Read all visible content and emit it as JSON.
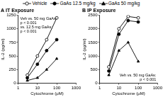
{
  "chart_data": [
    {
      "type": "line",
      "title": "A IT Exposure",
      "x_label": "Cytochrome (μM)",
      "y_label": "IL-2 (pg/ml)",
      "log": "x",
      "grid": false,
      "legend": "top",
      "x": [
        3,
        10,
        30,
        100
      ],
      "xlim": [
        1,
        1000
      ],
      "xticks": [
        1,
        10,
        100,
        1000
      ],
      "ylim": [
        0,
        1250
      ],
      "yticks": [
        0,
        250,
        500,
        750,
        1000,
        1250
      ],
      "annotation": [
        "Veh vs. 50 mg GaAs:",
        "p < 0.001",
        "vs. 12.5 mg GaAs:",
        "p < 0.001"
      ],
      "series": [
        {
          "name": "Vehicle",
          "color": "#000000",
          "marker": "circle_open",
          "values": [
            150,
            500,
            800,
            1200
          ]
        },
        {
          "name": "GaAs 12.5 mg/kg",
          "color": "#000000",
          "marker": "circle",
          "values": [
            100,
            350,
            600,
            800
          ]
        },
        {
          "name": "GaAs 50 mg/kg",
          "color": "#000000",
          "marker": "triangle",
          "values": [
            50,
            100,
            250,
            450
          ]
        }
      ]
    },
    {
      "type": "line",
      "title": "B IP Exposure",
      "x_label": "Cytochrome (μM)",
      "y_label": "IL-2 (pg/ml)",
      "log": "x",
      "grid": false,
      "legend": "top",
      "x": [
        3,
        10,
        30,
        100
      ],
      "xlim": [
        1,
        1000
      ],
      "xticks": [
        1,
        10,
        100,
        1000
      ],
      "ylim": [
        0,
        2500
      ],
      "yticks": [
        0,
        500,
        1000,
        1500,
        2000,
        2500
      ],
      "annotation": [
        "Veh vs. 50 mg GaAs:",
        "p < 0.001"
      ],
      "series": [
        {
          "name": "Vehicle",
          "color": "#000000",
          "marker": "circle_open",
          "values": [
            600,
            2000,
            2450,
            2400
          ]
        },
        {
          "name": "GaAs 12.5 mg/kg",
          "color": "#000000",
          "marker": "circle",
          "values": [
            450,
            1800,
            2300,
            2250
          ]
        },
        {
          "name": "GaAs 50 mg/kg",
          "color": "#000000",
          "marker": "triangle",
          "values": [
            300,
            1200,
            1500,
            800
          ]
        }
      ]
    }
  ]
}
